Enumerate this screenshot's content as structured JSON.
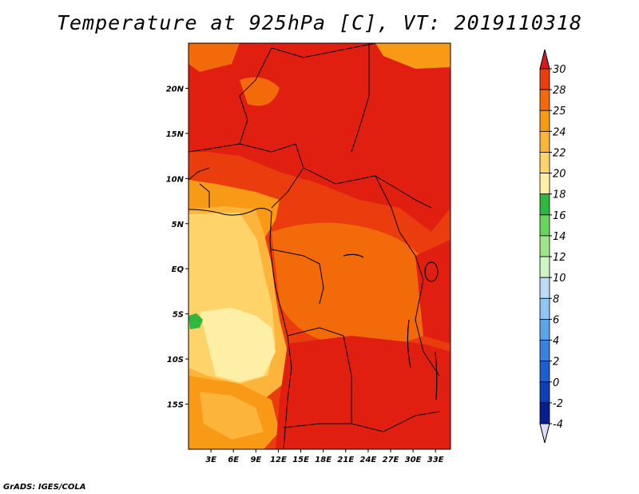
{
  "title": "Temperature at 925hPa [C], VT: 2019110318",
  "credit": "GrADS: IGES/COLA",
  "map": {
    "lon_range": [
      0,
      35
    ],
    "lat_range": [
      -20,
      25
    ],
    "lon_ticks": [
      "3E",
      "6E",
      "9E",
      "12E",
      "15E",
      "18E",
      "21E",
      "24E",
      "27E",
      "30E",
      "33E"
    ],
    "lat_ticks": [
      "20N",
      "15N",
      "10N",
      "5N",
      "EQ",
      "5S",
      "10S",
      "15S"
    ]
  },
  "colorbar": {
    "levels": [
      "30",
      "28",
      "25",
      "24",
      "22",
      "20",
      "18",
      "16",
      "14",
      "12",
      "10",
      "8",
      "6",
      "4",
      "2",
      "0",
      "-2",
      "-4"
    ],
    "colors": [
      "#e11f10",
      "#ea3c0c",
      "#f36a0a",
      "#f99a16",
      "#fcb53a",
      "#fdd36a",
      "#fdf0a6",
      "#2fb83e",
      "#68d55a",
      "#9ee68a",
      "#cff4c6",
      "#bcdcf6",
      "#8fc5f2",
      "#5aa4ea",
      "#3a82df",
      "#1e5fd0",
      "#0f3fb6",
      "#071f8e",
      "#0b0b5c"
    ],
    "top_arrow_color": "#d8191f",
    "bottom_arrow_color": "#dcdcf8"
  }
}
